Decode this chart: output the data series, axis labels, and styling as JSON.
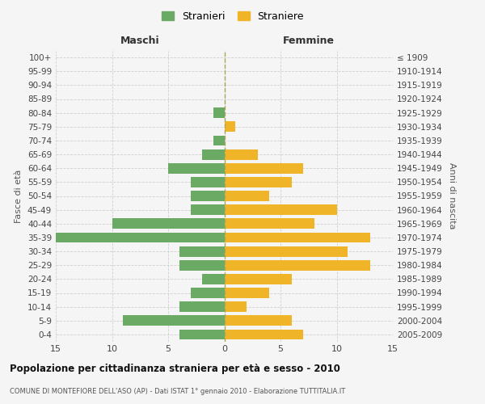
{
  "age_groups": [
    "0-4",
    "5-9",
    "10-14",
    "15-19",
    "20-24",
    "25-29",
    "30-34",
    "35-39",
    "40-44",
    "45-49",
    "50-54",
    "55-59",
    "60-64",
    "65-69",
    "70-74",
    "75-79",
    "80-84",
    "85-89",
    "90-94",
    "95-99",
    "100+"
  ],
  "birth_years": [
    "2005-2009",
    "2000-2004",
    "1995-1999",
    "1990-1994",
    "1985-1989",
    "1980-1984",
    "1975-1979",
    "1970-1974",
    "1965-1969",
    "1960-1964",
    "1955-1959",
    "1950-1954",
    "1945-1949",
    "1940-1944",
    "1935-1939",
    "1930-1934",
    "1925-1929",
    "1920-1924",
    "1915-1919",
    "1910-1914",
    "≤ 1909"
  ],
  "males": [
    4,
    9,
    4,
    3,
    2,
    4,
    4,
    15,
    10,
    3,
    3,
    3,
    5,
    2,
    1,
    0,
    1,
    0,
    0,
    0,
    0
  ],
  "females": [
    7,
    6,
    2,
    4,
    6,
    13,
    11,
    13,
    8,
    10,
    4,
    6,
    7,
    3,
    0,
    1,
    0,
    0,
    0,
    0,
    0
  ],
  "male_color": "#6aaa64",
  "female_color": "#f0b429",
  "background_color": "#f5f5f5",
  "grid_color": "#cccccc",
  "title": "Popolazione per cittadinanza straniera per età e sesso - 2010",
  "subtitle": "COMUNE DI MONTEFIORE DELL'ASO (AP) - Dati ISTAT 1° gennaio 2010 - Elaborazione TUTTITALIA.IT",
  "xlabel_left": "Maschi",
  "xlabel_right": "Femmine",
  "ylabel_left": "Fasce di età",
  "ylabel_right": "Anni di nascita",
  "legend_male": "Stranieri",
  "legend_female": "Straniere",
  "xlim": 15
}
